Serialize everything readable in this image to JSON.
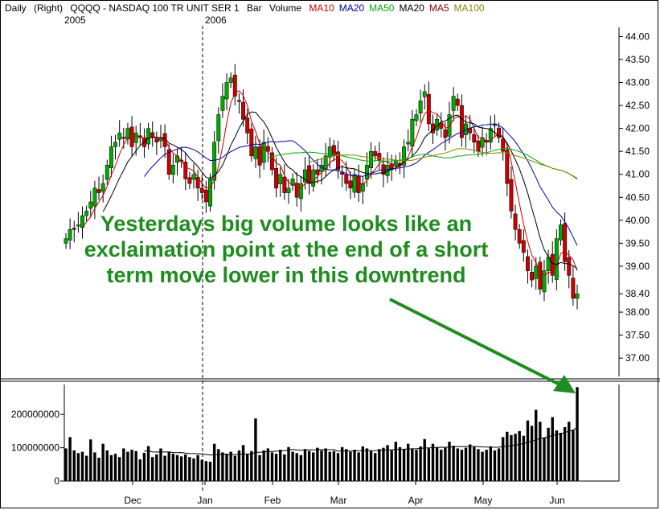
{
  "header": {
    "period": "Daily",
    "axis_side": "(Right)",
    "symbol": "QQQQ - NASDAQ 100 TR UNIT SER 1",
    "chart_style": "Bar",
    "volume_label": "Volume",
    "indicators": [
      {
        "label": "MA10",
        "color": "#cc0000"
      },
      {
        "label": "MA20",
        "color": "#0000aa"
      },
      {
        "label": "MA50",
        "color": "#00aa00"
      },
      {
        "label": "MA20",
        "color": "#000000"
      },
      {
        "label": "MA5",
        "color": "#880000"
      },
      {
        "label": "MA100",
        "color": "#888800"
      }
    ],
    "year_left": "2005",
    "year_right": "2006"
  },
  "annotation": {
    "text": "Yesterdays big volume looks like an exclaimation point at the end of a short term move lower in this downtrend",
    "color": "#1e8c1e"
  },
  "chart_data": [
    {
      "type": "candlestick",
      "title": "",
      "ylim": [
        36.6,
        44.2
      ],
      "y_ticks": [
        "44.00",
        "43.50",
        "43.00",
        "42.50",
        "42.00",
        "41.50",
        "41.00",
        "40.50",
        "40.00",
        "39.50",
        "39.00",
        "38.40",
        "38.00",
        "37.50",
        "37.00"
      ],
      "x_labels": [
        "Dec",
        "Jan",
        "Feb",
        "Mar",
        "Apr",
        "May",
        "Jun"
      ],
      "grid": false,
      "up_color": "#00aa00",
      "down_color": "#cc0000",
      "ma_lines": [
        {
          "name": "MA5",
          "color": "#cc0000"
        },
        {
          "name": "MA10",
          "color": "#000000"
        },
        {
          "name": "MA20",
          "color": "#0000aa"
        },
        {
          "name": "MA50",
          "color": "#00aa00"
        },
        {
          "name": "MA100",
          "color": "#888800"
        }
      ],
      "close": [
        39.6,
        39.8,
        39.8,
        39.9,
        40.1,
        40.2,
        40.4,
        40.7,
        40.6,
        40.8,
        41.2,
        41.6,
        41.7,
        41.9,
        41.8,
        42.0,
        41.6,
        41.9,
        41.8,
        41.6,
        42.0,
        41.8,
        41.7,
        41.8,
        41.6,
        41.0,
        41.2,
        41.4,
        41.3,
        40.9,
        40.8,
        41.0,
        40.7,
        40.6,
        40.4,
        40.9,
        41.7,
        42.3,
        42.7,
        43.0,
        43.1,
        42.7,
        42.6,
        42.2,
        41.9,
        41.4,
        41.6,
        41.2,
        41.7,
        41.5,
        41.1,
        40.7,
        41.0,
        40.6,
        40.7,
        40.9,
        40.5,
        40.8,
        41.1,
        40.8,
        41.1,
        41.0,
        41.2,
        41.4,
        41.6,
        41.4,
        41.1,
        41.0,
        40.8,
        40.7,
        41.0,
        40.6,
        40.8,
        41.2,
        41.5,
        41.4,
        41.3,
        41.0,
        41.2,
        41.1,
        41.3,
        41.2,
        41.6,
        41.7,
        42.2,
        42.3,
        42.6,
        42.8,
        42.1,
        41.9,
        42.2,
        42.0,
        41.8,
        42.3,
        42.7,
        42.5,
        41.8,
        42.1,
        41.9,
        41.7,
        41.5,
        41.8,
        41.7,
        42.0,
        42.1,
        41.8,
        41.5,
        40.8,
        40.2,
        39.8,
        39.5,
        39.3,
        38.9,
        38.7,
        39.0,
        38.5,
        38.9,
        39.2,
        38.8,
        39.6,
        39.9,
        39.1,
        38.8,
        38.3,
        38.4
      ],
      "volume": [
        98,
        132,
        92,
        84,
        88,
        76,
        125,
        86,
        70,
        112,
        92,
        78,
        82,
        72,
        98,
        88,
        94,
        90,
        65,
        85,
        105,
        72,
        80,
        98,
        76,
        88,
        82,
        78,
        74,
        80,
        72,
        68,
        78,
        64,
        60,
        58,
        112,
        96,
        86,
        82,
        88,
        76,
        92,
        108,
        80,
        90,
        188,
        78,
        92,
        98,
        86,
        82,
        94,
        80,
        102,
        88,
        84,
        78,
        96,
        90,
        86,
        100,
        92,
        98,
        88,
        90,
        84,
        102,
        96,
        88,
        94,
        86,
        104,
        98,
        90,
        84,
        96,
        100,
        108,
        92,
        118,
        102,
        96,
        112,
        98,
        94,
        104,
        126,
        98,
        112,
        102,
        94,
        100,
        118,
        106,
        98,
        94,
        100,
        110,
        102,
        96,
        88,
        94,
        104,
        92,
        98,
        132,
        148,
        138,
        142,
        150,
        136,
        182,
        166,
        214,
        178,
        130,
        160,
        192,
        152,
        145,
        162,
        178,
        154,
        282
      ],
      "volume_ylim": [
        0,
        290000000
      ],
      "volume_ticks": [
        "200000000",
        "100000000",
        "0"
      ]
    }
  ]
}
